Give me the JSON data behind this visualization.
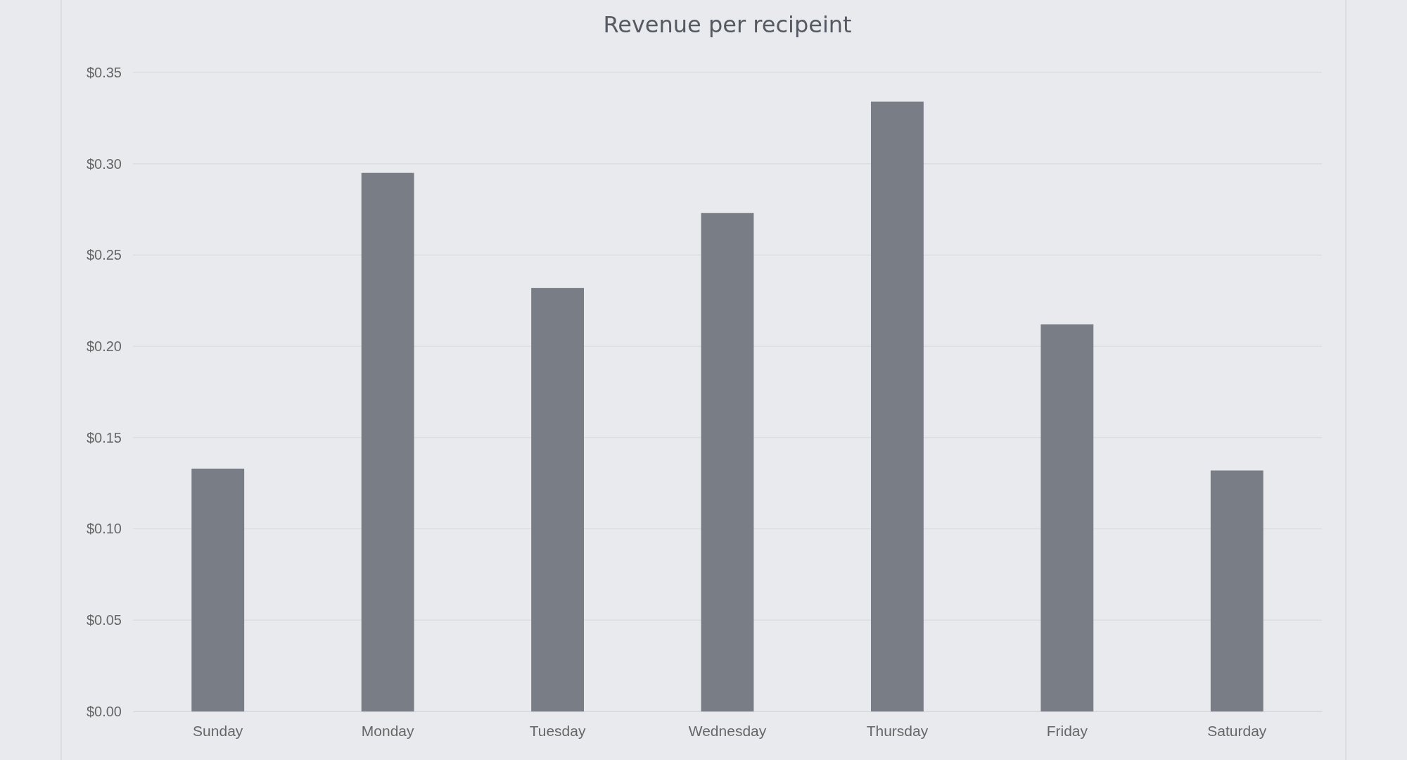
{
  "chart_data": {
    "type": "bar",
    "title": "Revenue per recipeint",
    "categories": [
      "Sunday",
      "Monday",
      "Tuesday",
      "Wednesday",
      "Thursday",
      "Friday",
      "Saturday"
    ],
    "values": [
      0.133,
      0.295,
      0.232,
      0.273,
      0.334,
      0.212,
      0.132
    ],
    "color": "#797d85",
    "ylim": [
      0,
      0.35
    ],
    "yticks": [
      {
        "value": 0,
        "label": "$0.00"
      },
      {
        "value": 0.05,
        "label": "$0.05"
      },
      {
        "value": 0.1,
        "label": "$0.10"
      },
      {
        "value": 0.15,
        "label": "$0.15"
      },
      {
        "value": 0.2,
        "label": "$0.20"
      },
      {
        "value": 0.25,
        "label": "$0.25"
      },
      {
        "value": 0.3,
        "label": "$0.30"
      },
      {
        "value": 0.35,
        "label": "$0.35"
      }
    ],
    "grid": "y"
  }
}
